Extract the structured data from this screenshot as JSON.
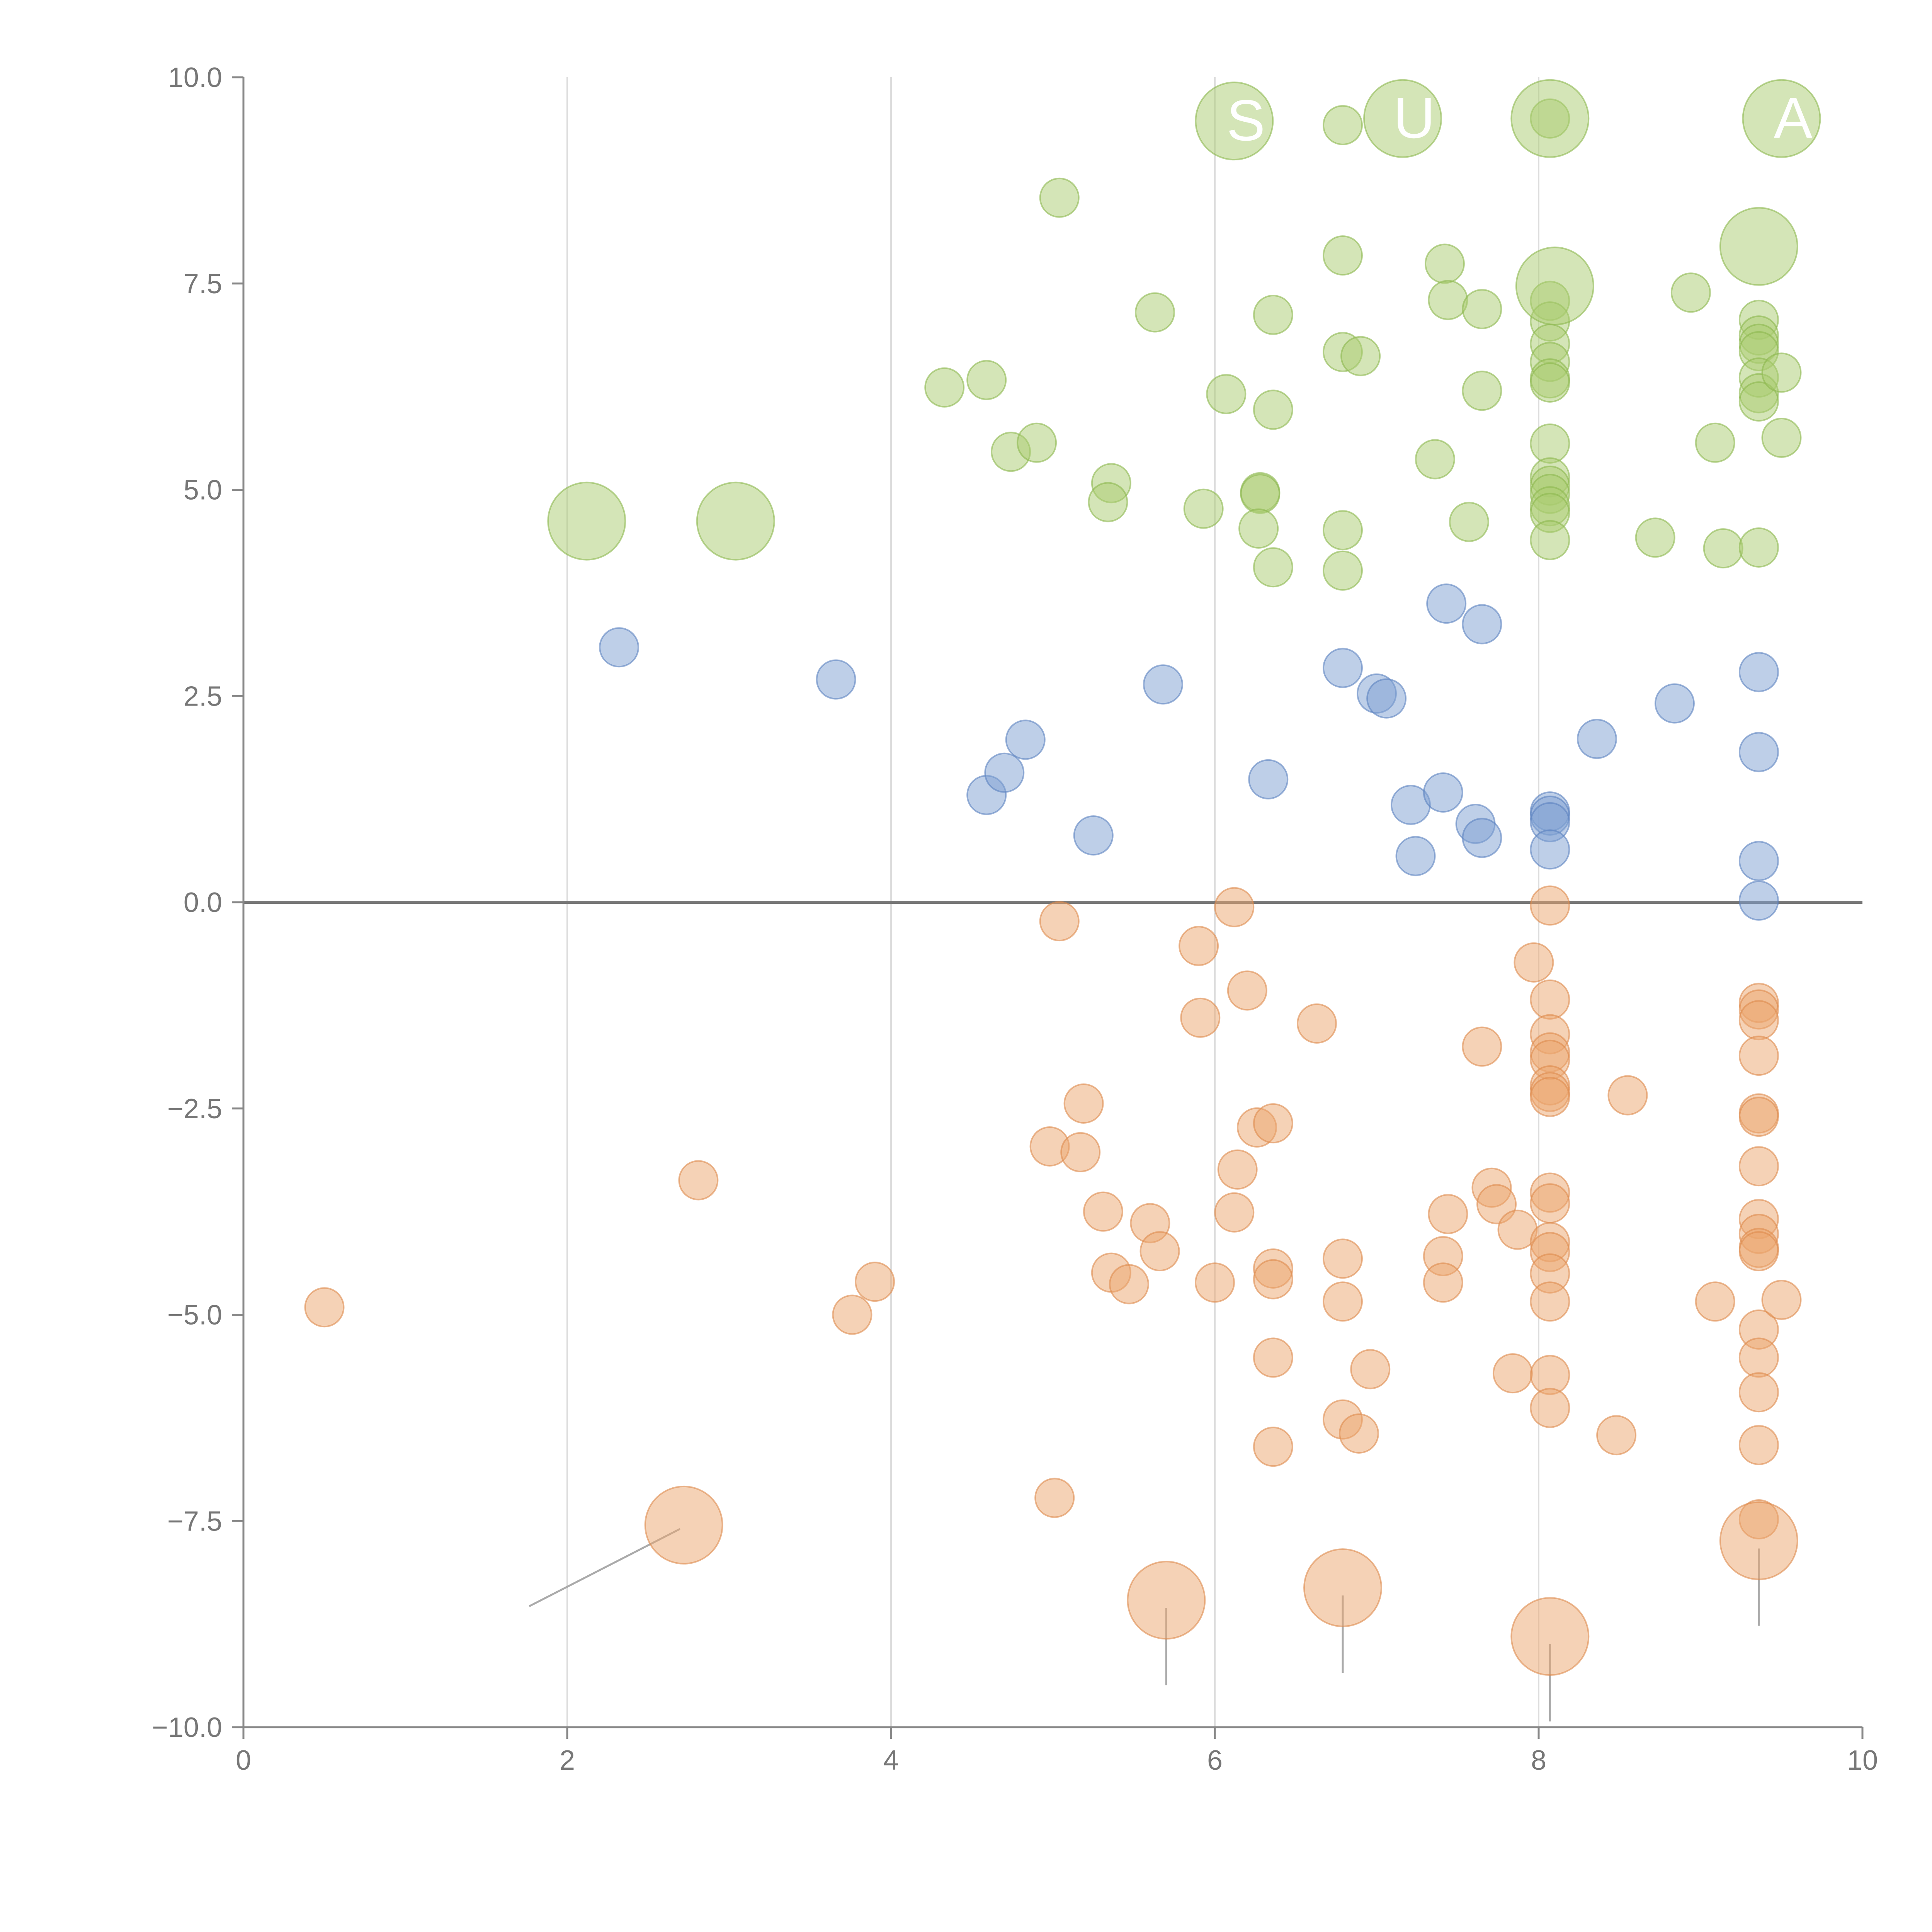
{
  "chart_data": {
    "type": "scatter",
    "subtype": "bubble",
    "title": "",
    "xlabel": "",
    "ylabel": "",
    "xlim": [
      0,
      10
    ],
    "ylim": [
      -10,
      10
    ],
    "x_ticks": [
      "0",
      "2",
      "4",
      "6",
      "8",
      "10"
    ],
    "x_tick_values": [
      0,
      2,
      4,
      6,
      8,
      10
    ],
    "y_ticks": [
      "10.0",
      "7.5",
      "5.0",
      "2.5",
      "0.0",
      "−2.5",
      "−5.0",
      "−7.5",
      "−10.0"
    ],
    "y_tick_values": [
      10,
      7.5,
      5,
      2.5,
      0,
      -2.5,
      -5,
      -7.5,
      -10
    ],
    "vertical_gridlines": true,
    "zero_line": true,
    "legend": "none",
    "series": [
      {
        "name": "green",
        "color": "#a9cc6f",
        "stroke": "#8cb84e",
        "points": [
          [
            5.04,
            8.54
          ],
          [
            4.33,
            6.24
          ],
          [
            4.59,
            6.33
          ],
          [
            4.74,
            5.46
          ],
          [
            4.9,
            5.57
          ],
          [
            5.63,
            7.15
          ],
          [
            6.36,
            7.12
          ],
          [
            6.07,
            6.16
          ],
          [
            6.36,
            5.97
          ],
          [
            5.36,
            5.08
          ],
          [
            5.34,
            4.85
          ],
          [
            5.93,
            4.77
          ],
          [
            6.28,
            4.97
          ],
          [
            6.28,
            4.95
          ],
          [
            6.27,
            4.53
          ],
          [
            6.36,
            4.06
          ],
          [
            6.79,
            7.84
          ],
          [
            6.79,
            6.67
          ],
          [
            6.9,
            6.62
          ],
          [
            6.79,
            4.51
          ],
          [
            6.79,
            4.02
          ],
          [
            7.42,
            7.74
          ],
          [
            7.44,
            7.3
          ],
          [
            7.65,
            7.19
          ],
          [
            7.65,
            6.2
          ],
          [
            7.36,
            5.37
          ],
          [
            7.57,
            4.61
          ],
          [
            8.07,
            7.29
          ],
          [
            8.07,
            7.04
          ],
          [
            8.07,
            6.77
          ],
          [
            8.07,
            6.55
          ],
          [
            8.07,
            6.35
          ],
          [
            8.07,
            6.3
          ],
          [
            8.07,
            5.56
          ],
          [
            8.07,
            5.15
          ],
          [
            8.07,
            5.05
          ],
          [
            8.07,
            4.95
          ],
          [
            8.07,
            4.8
          ],
          [
            8.07,
            4.72
          ],
          [
            8.07,
            4.39
          ],
          [
            8.72,
            4.42
          ],
          [
            8.94,
            7.39
          ],
          [
            9.09,
            5.57
          ],
          [
            9.14,
            4.29
          ],
          [
            9.36,
            7.06
          ],
          [
            9.36,
            6.87
          ],
          [
            9.36,
            6.77
          ],
          [
            9.36,
            6.68
          ],
          [
            9.36,
            6.36
          ],
          [
            9.36,
            6.17
          ],
          [
            9.36,
            6.07
          ],
          [
            9.5,
            6.42
          ],
          [
            9.5,
            5.63
          ],
          [
            9.36,
            4.3
          ],
          [
            6.79,
            9.42
          ],
          [
            8.07,
            9.5
          ]
        ],
        "highlights": [
          {
            "x": 2.12,
            "y": 4.62,
            "label": ""
          },
          {
            "x": 3.04,
            "y": 4.62,
            "label": ""
          },
          {
            "x": 6.12,
            "y": 9.47,
            "label": "S"
          },
          {
            "x": 7.16,
            "y": 9.5,
            "label": "U"
          },
          {
            "x": 8.07,
            "y": 9.5,
            "label": ""
          },
          {
            "x": 9.5,
            "y": 9.5,
            "label": "A"
          },
          {
            "x": 9.36,
            "y": 7.95,
            "label": ""
          },
          {
            "x": 8.1,
            "y": 7.47,
            "label": ""
          }
        ]
      },
      {
        "name": "blue",
        "color": "#7d9fd1",
        "stroke": "#5c82bf",
        "points": [
          [
            2.32,
            3.09
          ],
          [
            3.66,
            2.7
          ],
          [
            4.59,
            1.3
          ],
          [
            4.7,
            1.57
          ],
          [
            4.83,
            1.97
          ],
          [
            5.25,
            0.81
          ],
          [
            5.68,
            2.64
          ],
          [
            6.33,
            1.49
          ],
          [
            6.79,
            2.84
          ],
          [
            7.0,
            2.53
          ],
          [
            7.06,
            2.47
          ],
          [
            7.21,
            1.18
          ],
          [
            7.41,
            1.33
          ],
          [
            7.43,
            3.62
          ],
          [
            7.24,
            0.56
          ],
          [
            7.61,
            0.95
          ],
          [
            7.65,
            3.37
          ],
          [
            7.65,
            0.78
          ],
          [
            8.07,
            1.1
          ],
          [
            8.07,
            1.05
          ],
          [
            8.07,
            0.97
          ],
          [
            8.07,
            0.64
          ],
          [
            8.36,
            1.98
          ],
          [
            8.84,
            2.41
          ],
          [
            9.36,
            2.79
          ],
          [
            9.36,
            1.82
          ],
          [
            9.36,
            0.5
          ],
          [
            9.36,
            0.02
          ]
        ],
        "highlights": []
      },
      {
        "name": "orange",
        "color": "#eba66e",
        "stroke": "#dd8a4c",
        "points": [
          [
            0.5,
            -4.91
          ],
          [
            2.81,
            -3.37
          ],
          [
            3.76,
            -5.0
          ],
          [
            3.9,
            -4.6
          ],
          [
            5.04,
            -0.23
          ],
          [
            4.98,
            -2.96
          ],
          [
            5.19,
            -2.44
          ],
          [
            5.17,
            -3.03
          ],
          [
            5.31,
            -3.75
          ],
          [
            5.36,
            -4.49
          ],
          [
            5.47,
            -4.63
          ],
          [
            5.6,
            -3.89
          ],
          [
            5.66,
            -4.23
          ],
          [
            5.01,
            -7.22
          ],
          [
            5.9,
            -0.53
          ],
          [
            5.91,
            -1.4
          ],
          [
            6.2,
            -1.07
          ],
          [
            6.12,
            -0.06
          ],
          [
            6.26,
            -2.73
          ],
          [
            6.36,
            -2.68
          ],
          [
            6.14,
            -3.24
          ],
          [
            6.12,
            -3.76
          ],
          [
            6.0,
            -4.61
          ],
          [
            6.36,
            -4.44
          ],
          [
            6.36,
            -4.57
          ],
          [
            6.36,
            -5.52
          ],
          [
            6.36,
            -6.6
          ],
          [
            6.63,
            -1.47
          ],
          [
            6.79,
            -4.32
          ],
          [
            6.79,
            -4.84
          ],
          [
            6.96,
            -5.66
          ],
          [
            6.79,
            -6.27
          ],
          [
            6.89,
            -6.44
          ],
          [
            7.41,
            -4.29
          ],
          [
            7.41,
            -4.61
          ],
          [
            7.44,
            -3.78
          ],
          [
            7.65,
            -1.75
          ],
          [
            7.71,
            -3.46
          ],
          [
            7.74,
            -3.66
          ],
          [
            7.87,
            -3.97
          ],
          [
            7.84,
            -5.71
          ],
          [
            7.97,
            -0.73
          ],
          [
            8.07,
            -0.04
          ],
          [
            8.07,
            -1.18
          ],
          [
            8.07,
            -1.6
          ],
          [
            8.07,
            -1.82
          ],
          [
            8.07,
            -1.91
          ],
          [
            8.07,
            -2.22
          ],
          [
            8.07,
            -2.3
          ],
          [
            8.07,
            -2.36
          ],
          [
            8.07,
            -3.52
          ],
          [
            8.07,
            -3.65
          ],
          [
            8.07,
            -4.12
          ],
          [
            8.07,
            -4.24
          ],
          [
            8.07,
            -4.5
          ],
          [
            8.07,
            -4.84
          ],
          [
            8.07,
            -5.73
          ],
          [
            8.07,
            -6.13
          ],
          [
            8.55,
            -2.34
          ],
          [
            8.48,
            -6.46
          ],
          [
            9.09,
            -4.84
          ],
          [
            9.36,
            -1.22
          ],
          [
            9.36,
            -1.3
          ],
          [
            9.36,
            -1.43
          ],
          [
            9.36,
            -1.86
          ],
          [
            9.36,
            -2.56
          ],
          [
            9.36,
            -2.6
          ],
          [
            9.36,
            -3.2
          ],
          [
            9.36,
            -3.84
          ],
          [
            9.36,
            -4.02
          ],
          [
            9.36,
            -4.19
          ],
          [
            9.36,
            -4.23
          ],
          [
            9.36,
            -5.18
          ],
          [
            9.36,
            -5.52
          ],
          [
            9.36,
            -5.94
          ],
          [
            9.36,
            -6.58
          ],
          [
            9.36,
            -7.48
          ],
          [
            9.5,
            -4.82
          ]
        ],
        "highlights": [
          {
            "x": 2.72,
            "y": -7.55,
            "label": ""
          },
          {
            "x": 5.7,
            "y": -8.46,
            "label": ""
          },
          {
            "x": 6.79,
            "y": -8.31,
            "label": ""
          },
          {
            "x": 8.07,
            "y": -8.9,
            "label": ""
          },
          {
            "x": 9.36,
            "y": -7.74,
            "label": ""
          }
        ]
      }
    ]
  }
}
